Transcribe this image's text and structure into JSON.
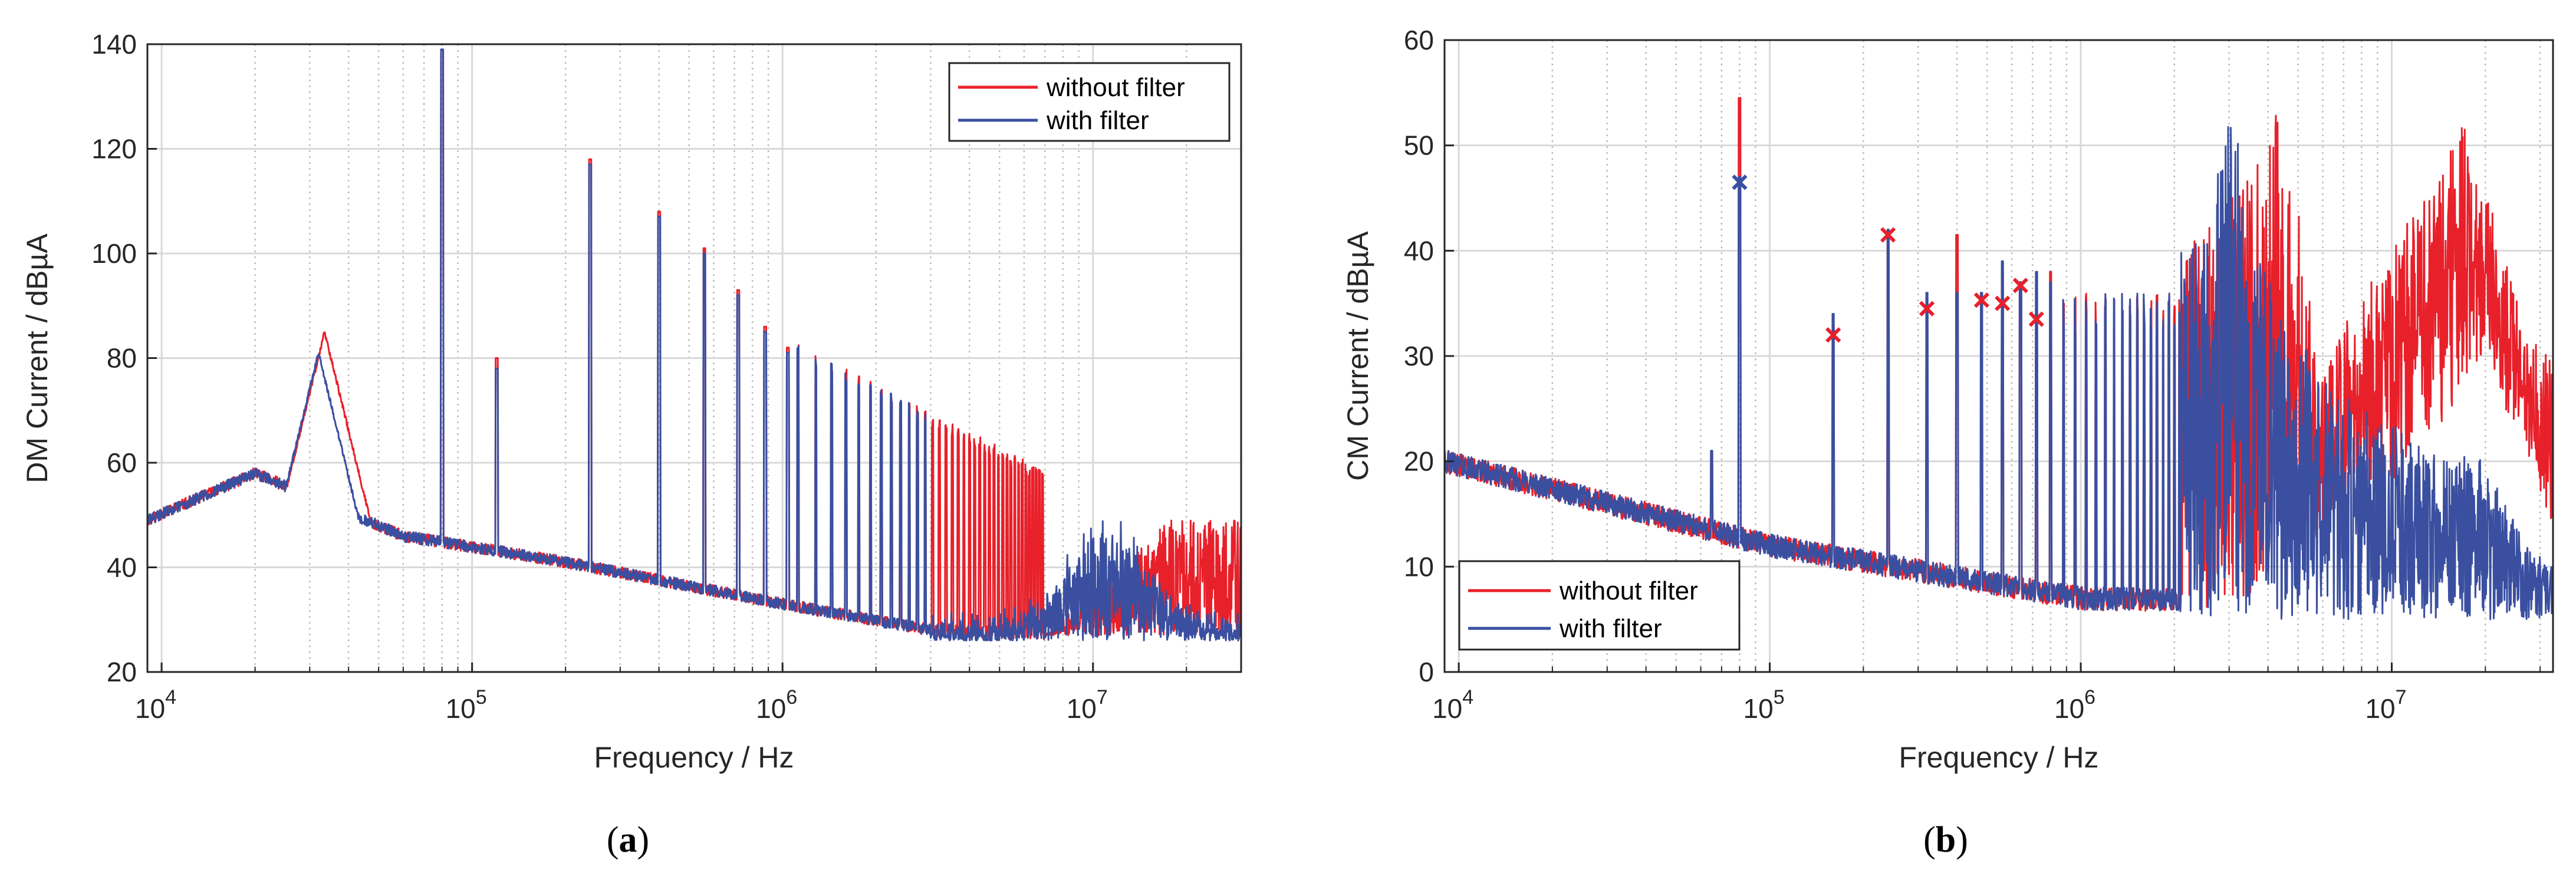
{
  "chart_data": [
    {
      "type": "line",
      "caption_letter": "a",
      "xlabel": "Frequency / Hz",
      "ylabel": "DM Current / dBµA",
      "xscale": "log",
      "xlim": [
        9000,
        30000000
      ],
      "ylim": [
        20,
        140
      ],
      "yticks": [
        20,
        40,
        60,
        80,
        100,
        120,
        140
      ],
      "xticks": [
        {
          "value": 10000,
          "base": "10",
          "exp": "4"
        },
        {
          "value": 100000,
          "base": "10",
          "exp": "5"
        },
        {
          "value": 1000000,
          "base": "10",
          "exp": "6"
        },
        {
          "value": 10000000,
          "base": "10",
          "exp": "7"
        }
      ],
      "grid": true,
      "legend_position": "top-right",
      "series": [
        {
          "name": "without filter",
          "color": "#e8202a"
        },
        {
          "name": "with filter",
          "color": "#3a4fa0"
        }
      ],
      "features": {
        "noise_floor": [
          [
            9000,
            49
          ],
          [
            20000,
            58
          ],
          [
            60000,
            46
          ],
          [
            200000,
            41
          ],
          [
            1000000,
            33
          ],
          [
            3000000,
            28
          ],
          [
            30000000,
            26
          ]
        ],
        "resonance_with": {
          "f": 32000,
          "peak": 81
        },
        "resonance_without": {
          "f": 33500,
          "peak": 85
        },
        "harmonic_base": 80000,
        "harmonic_peaks": [
          {
            "f": 80000,
            "without": 139,
            "with": 139
          },
          {
            "f": 120000,
            "without": 80,
            "with": 78
          },
          {
            "f": 240000,
            "without": 118,
            "with": 117
          },
          {
            "f": 400000,
            "without": 108,
            "with": 107
          },
          {
            "f": 560000,
            "without": 101,
            "with": 100
          },
          {
            "f": 720000,
            "without": 93,
            "with": 92
          },
          {
            "f": 880000,
            "without": 86,
            "with": 85
          },
          {
            "f": 1040000,
            "without": 82,
            "with": 81
          }
        ],
        "band_without_filter": {
          "f_start": 7000000,
          "f_end": 30000000,
          "low": 27,
          "high": 49
        },
        "band_with_filter": {
          "f_start": 3000000,
          "f_end": 30000000,
          "low": 26,
          "high": 45
        }
      }
    },
    {
      "type": "line",
      "caption_letter": "b",
      "xlabel": "Frequency / Hz",
      "ylabel": "CM Current / dBµA",
      "xscale": "log",
      "xlim": [
        9000,
        33000000
      ],
      "ylim": [
        0,
        60
      ],
      "yticks": [
        0,
        10,
        20,
        30,
        40,
        50,
        60
      ],
      "xticks": [
        {
          "value": 10000,
          "base": "10",
          "exp": "4"
        },
        {
          "value": 100000,
          "base": "10",
          "exp": "5"
        },
        {
          "value": 1000000,
          "base": "10",
          "exp": "6"
        },
        {
          "value": 10000000,
          "base": "10",
          "exp": "7"
        }
      ],
      "grid": true,
      "legend_position": "bottom-left",
      "series": [
        {
          "name": "without filter",
          "color": "#e8202a"
        },
        {
          "name": "with filter",
          "color": "#3a4fa0"
        }
      ],
      "features": {
        "noise_floor": [
          [
            9000,
            20
          ],
          [
            100000,
            12
          ],
          [
            1000000,
            7
          ],
          [
            33000000,
            6
          ]
        ],
        "harmonic_peaks": [
          {
            "f": 65000,
            "without": 21,
            "with": 21
          },
          {
            "f": 80000,
            "without": 54.5,
            "with": 47
          },
          {
            "f": 160000,
            "without": 33,
            "with": 34
          },
          {
            "f": 240000,
            "without": 42,
            "with": 42
          },
          {
            "f": 320000,
            "without": 35,
            "with": 36
          },
          {
            "f": 400000,
            "without": 41.5,
            "with": 36
          },
          {
            "f": 480000,
            "without": 36,
            "with": 36
          },
          {
            "f": 560000,
            "without": 38,
            "with": 39
          },
          {
            "f": 640000,
            "without": 37,
            "with": 37
          },
          {
            "f": 720000,
            "without": 34,
            "with": 38
          },
          {
            "f": 800000,
            "without": 38,
            "with": 37
          }
        ],
        "markers": [
          {
            "f": 80000,
            "value": 46.5,
            "color": "#3a4fa0"
          },
          {
            "f": 160000,
            "value": 32,
            "color": "#e8202a"
          },
          {
            "f": 240000,
            "value": 41.5,
            "color": "#e8202a"
          },
          {
            "f": 320000,
            "value": 34.5,
            "color": "#e8202a"
          },
          {
            "f": 480000,
            "value": 35.3,
            "color": "#e8202a"
          },
          {
            "f": 560000,
            "value": 35,
            "color": "#e8202a"
          },
          {
            "f": 640000,
            "value": 36.7,
            "color": "#e8202a"
          },
          {
            "f": 720000,
            "value": 33.5,
            "color": "#e8202a"
          }
        ],
        "envelope_without": [
          [
            1500000,
            36
          ],
          [
            2500000,
            42
          ],
          [
            3200000,
            47
          ],
          [
            4300000,
            54
          ],
          [
            5000000,
            46
          ],
          [
            5800000,
            28
          ],
          [
            8000000,
            36
          ],
          [
            12000000,
            44
          ],
          [
            17000000,
            52
          ],
          [
            22000000,
            42
          ],
          [
            27000000,
            32
          ],
          [
            33000000,
            30
          ]
        ],
        "envelope_without_low": [
          [
            3000000,
            6
          ],
          [
            5800000,
            12
          ],
          [
            12000000,
            20
          ],
          [
            20000000,
            30
          ],
          [
            27000000,
            20
          ],
          [
            33000000,
            14
          ]
        ],
        "envelope_with": [
          [
            1500000,
            36
          ],
          [
            2500000,
            42
          ],
          [
            3000000,
            53
          ],
          [
            3200000,
            52
          ],
          [
            3600000,
            40
          ],
          [
            6000000,
            28
          ],
          [
            12000000,
            22
          ],
          [
            20000000,
            20
          ],
          [
            27000000,
            12
          ],
          [
            33000000,
            10
          ]
        ],
        "envelope_with_low": [
          [
            1500000,
            6
          ],
          [
            3000000,
            5
          ],
          [
            33000000,
            5
          ]
        ]
      }
    }
  ]
}
